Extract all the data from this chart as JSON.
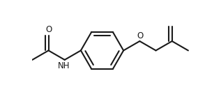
{
  "bg_color": "#ffffff",
  "line_color": "#1a1a1a",
  "line_width": 1.5,
  "font_size_label": 8.5,
  "o_label": "O",
  "nh_label": "NH",
  "o_carbonyl_label": "O",
  "fig_width": 3.17,
  "fig_height": 1.42,
  "dpi": 100
}
